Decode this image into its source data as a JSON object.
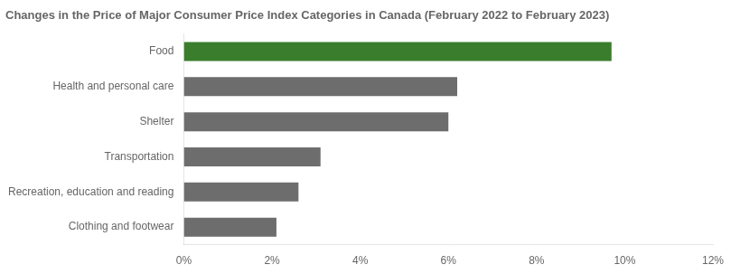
{
  "chart_data": {
    "type": "bar",
    "orientation": "horizontal",
    "title": "Changes in the Price of Major Consumer Price Index Categories in Canada (February 2022 to February 2023)",
    "categories": [
      "Clothing and footwear",
      "Recreation, education and reading",
      "Transportation",
      "Shelter",
      "Health and personal care",
      "Food"
    ],
    "values": [
      2.1,
      2.6,
      3.1,
      6.0,
      6.2,
      9.7
    ],
    "colors": [
      "#6d6d6d",
      "#6d6d6d",
      "#6d6d6d",
      "#6d6d6d",
      "#6d6d6d",
      "#3a7d2c"
    ],
    "xlim": [
      0,
      12
    ],
    "xticks": [
      {
        "value": 0,
        "label": "0%"
      },
      {
        "value": 2,
        "label": "2%"
      },
      {
        "value": 4,
        "label": "4%"
      },
      {
        "value": 6,
        "label": "6%"
      },
      {
        "value": 8,
        "label": "8%"
      },
      {
        "value": 10,
        "label": "10%"
      },
      {
        "value": 12,
        "label": "12%"
      }
    ],
    "grid": false
  }
}
